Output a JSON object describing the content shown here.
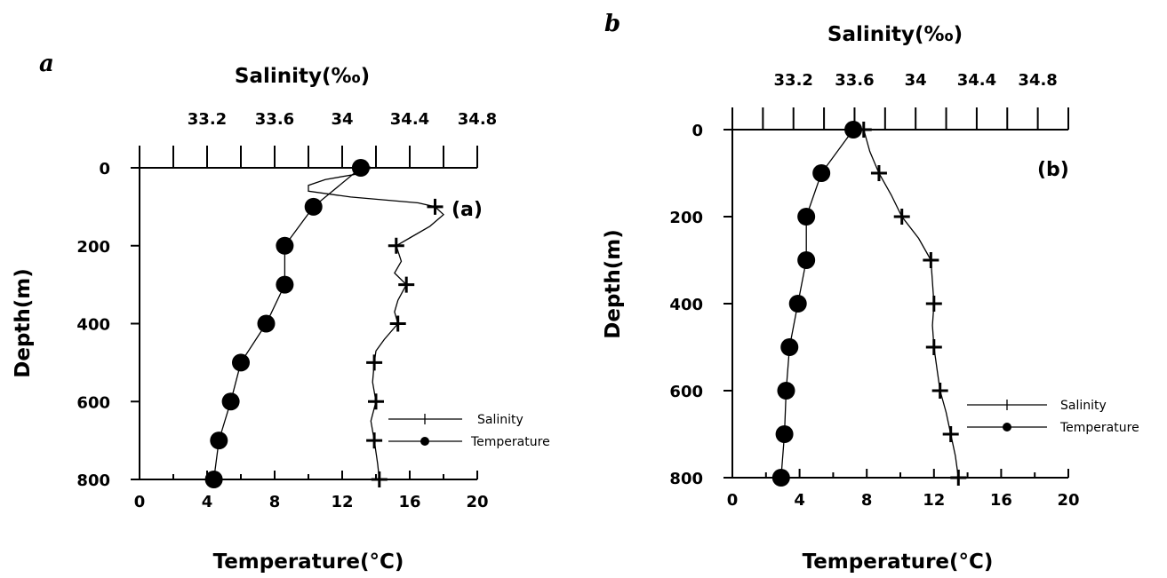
{
  "chart_data": [
    {
      "type": "line",
      "panel_letter": "a",
      "panel_tag": "(a)",
      "top_axis_label": "Salinity(‰)",
      "bottom_axis_label": "Temperature(°C)",
      "left_axis_label": "Depth(m)",
      "salinity_ticks": [
        "33.2",
        "33.6",
        "34",
        "34.4",
        "34.8"
      ],
      "temperature_ticks": [
        "0",
        "4",
        "8",
        "12",
        "16",
        "20"
      ],
      "depth_ticks": [
        "0",
        "200",
        "400",
        "600",
        "800"
      ],
      "salinity_range": [
        32.8,
        34.8
      ],
      "temperature_range": [
        0,
        20
      ],
      "depth_range": [
        0,
        800
      ],
      "legend": [
        "Salinity",
        "Temperature"
      ],
      "legend_position": "bottom-right",
      "salinity_markers": [
        {
          "depth": 0,
          "value": 34.12
        },
        {
          "depth": 100,
          "value": 34.55
        },
        {
          "depth": 200,
          "value": 34.32
        },
        {
          "depth": 300,
          "value": 34.38
        },
        {
          "depth": 400,
          "value": 34.33
        },
        {
          "depth": 500,
          "value": 34.19
        },
        {
          "depth": 600,
          "value": 34.2
        },
        {
          "depth": 700,
          "value": 34.19
        },
        {
          "depth": 800,
          "value": 34.22
        }
      ],
      "salinity_profile": [
        {
          "depth": 0,
          "value": 34.12
        },
        {
          "depth": 15,
          "value": 34.1
        },
        {
          "depth": 30,
          "value": 33.9
        },
        {
          "depth": 45,
          "value": 33.8
        },
        {
          "depth": 60,
          "value": 33.8
        },
        {
          "depth": 75,
          "value": 34.05
        },
        {
          "depth": 90,
          "value": 34.45
        },
        {
          "depth": 100,
          "value": 34.55
        },
        {
          "depth": 120,
          "value": 34.6
        },
        {
          "depth": 150,
          "value": 34.52
        },
        {
          "depth": 180,
          "value": 34.4
        },
        {
          "depth": 200,
          "value": 34.32
        },
        {
          "depth": 240,
          "value": 34.35
        },
        {
          "depth": 270,
          "value": 34.31
        },
        {
          "depth": 300,
          "value": 34.38
        },
        {
          "depth": 340,
          "value": 34.33
        },
        {
          "depth": 370,
          "value": 34.31
        },
        {
          "depth": 400,
          "value": 34.33
        },
        {
          "depth": 440,
          "value": 34.25
        },
        {
          "depth": 470,
          "value": 34.2
        },
        {
          "depth": 500,
          "value": 34.19
        },
        {
          "depth": 550,
          "value": 34.18
        },
        {
          "depth": 600,
          "value": 34.2
        },
        {
          "depth": 650,
          "value": 34.17
        },
        {
          "depth": 700,
          "value": 34.19
        },
        {
          "depth": 760,
          "value": 34.21
        },
        {
          "depth": 800,
          "value": 34.22
        }
      ],
      "temperature_markers": [
        {
          "depth": 0,
          "value": 13.1
        },
        {
          "depth": 100,
          "value": 10.3
        },
        {
          "depth": 200,
          "value": 8.6
        },
        {
          "depth": 300,
          "value": 8.6
        },
        {
          "depth": 400,
          "value": 7.5
        },
        {
          "depth": 500,
          "value": 6.0
        },
        {
          "depth": 600,
          "value": 5.4
        },
        {
          "depth": 700,
          "value": 4.7
        },
        {
          "depth": 800,
          "value": 4.4
        }
      ]
    },
    {
      "type": "line",
      "panel_letter": "b",
      "panel_tag": "(b)",
      "top_axis_label": "Salinity(‰)",
      "bottom_axis_label": "Temperature(°C)",
      "left_axis_label": "Depth(m)",
      "salinity_ticks": [
        "33.2",
        "33.6",
        "34",
        "34.4",
        "34.8"
      ],
      "temperature_ticks": [
        "0",
        "4",
        "8",
        "12",
        "16",
        "20"
      ],
      "depth_ticks": [
        "0",
        "200",
        "400",
        "600",
        "800"
      ],
      "salinity_range": [
        32.8,
        35.0
      ],
      "temperature_range": [
        0,
        20
      ],
      "depth_range": [
        0,
        800
      ],
      "legend": [
        "Salinity",
        "Temperature"
      ],
      "legend_position": "bottom-right",
      "salinity_markers": [
        {
          "depth": 0,
          "value": 33.66
        },
        {
          "depth": 100,
          "value": 33.76
        },
        {
          "depth": 200,
          "value": 33.91
        },
        {
          "depth": 300,
          "value": 34.1
        },
        {
          "depth": 400,
          "value": 34.12
        },
        {
          "depth": 500,
          "value": 34.12
        },
        {
          "depth": 600,
          "value": 34.16
        },
        {
          "depth": 700,
          "value": 34.23
        },
        {
          "depth": 800,
          "value": 34.28
        }
      ],
      "salinity_profile": [
        {
          "depth": 0,
          "value": 33.66
        },
        {
          "depth": 50,
          "value": 33.7
        },
        {
          "depth": 100,
          "value": 33.76
        },
        {
          "depth": 150,
          "value": 33.84
        },
        {
          "depth": 200,
          "value": 33.91
        },
        {
          "depth": 250,
          "value": 34.02
        },
        {
          "depth": 300,
          "value": 34.1
        },
        {
          "depth": 350,
          "value": 34.11
        },
        {
          "depth": 400,
          "value": 34.12
        },
        {
          "depth": 450,
          "value": 34.11
        },
        {
          "depth": 500,
          "value": 34.12
        },
        {
          "depth": 550,
          "value": 34.14
        },
        {
          "depth": 600,
          "value": 34.16
        },
        {
          "depth": 650,
          "value": 34.2
        },
        {
          "depth": 700,
          "value": 34.23
        },
        {
          "depth": 750,
          "value": 34.26
        },
        {
          "depth": 800,
          "value": 34.28
        }
      ],
      "temperature_markers": [
        {
          "depth": 0,
          "value": 7.2
        },
        {
          "depth": 100,
          "value": 5.3
        },
        {
          "depth": 200,
          "value": 4.4
        },
        {
          "depth": 300,
          "value": 4.4
        },
        {
          "depth": 400,
          "value": 3.9
        },
        {
          "depth": 500,
          "value": 3.4
        },
        {
          "depth": 600,
          "value": 3.2
        },
        {
          "depth": 700,
          "value": 3.1
        },
        {
          "depth": 800,
          "value": 2.9
        }
      ]
    }
  ]
}
